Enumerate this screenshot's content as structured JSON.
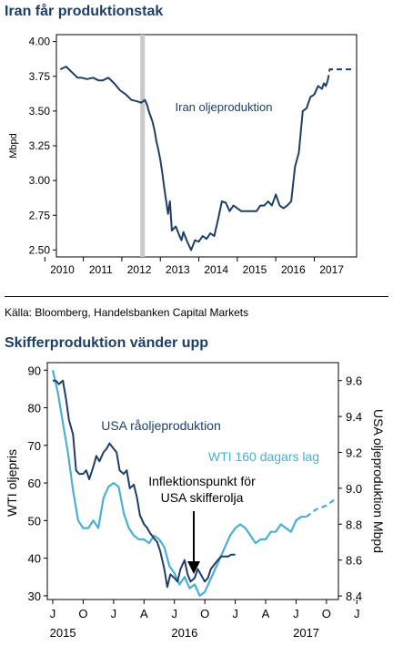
{
  "charts": {
    "chart1": {
      "title": "Iran får produktionstak",
      "ylabel": "Mbpd",
      "series_label": "Iran oljeproduktion",
      "yticks": [
        "4.00",
        "3.75",
        "3.50",
        "3.25",
        "3.00",
        "2.75",
        "2.50"
      ],
      "years": [
        "2010",
        "2011",
        "2012",
        "2013",
        "2014",
        "2015",
        "2016",
        "2017"
      ]
    },
    "source": "Källa: Bloomberg, Handelsbanken Capital Markets",
    "chart2": {
      "title": "Skifferproduktion vänder upp",
      "ylabel_left": "WTI oljepris",
      "ylabel_right": "USA oljeproduktion Mbpd",
      "label_usa": "USA råoljeproduktion",
      "label_wti": "WTI 160 dagars lag",
      "annotation_line1": "Inflektionspunkt för",
      "annotation_line2": "USA skifferolja",
      "yticks_left": [
        "90",
        "80",
        "70",
        "60",
        "50",
        "40",
        "30"
      ],
      "yticks_right": [
        "9.6",
        "9.4",
        "9.2",
        "9.0",
        "8.8",
        "8.6",
        "8.4"
      ],
      "months": [
        "J",
        "O",
        "J",
        "A",
        "J",
        "O",
        "J",
        "A",
        "J",
        "O",
        "J"
      ],
      "years": [
        "2015",
        "2016",
        "2017"
      ]
    }
  },
  "chart_data": [
    {
      "type": "line",
      "title": "Iran får produktionstak",
      "ylabel": "Mbpd",
      "ylim": [
        2.45,
        4.05
      ],
      "xlim": [
        2009.8,
        2017.6
      ],
      "grid": false,
      "series": [
        {
          "name": "Iran oljeproduktion",
          "color": "#1d3f66",
          "x": [
            2009.9,
            2010.05,
            2010.2,
            2010.35,
            2010.45,
            2010.6,
            2010.75,
            2010.9,
            2011.0,
            2011.15,
            2011.3,
            2011.45,
            2011.6,
            2011.75,
            2011.9,
            2012.0,
            2012.1,
            2012.15,
            2012.2,
            2012.25,
            2012.3,
            2012.35,
            2012.4,
            2012.45,
            2012.5,
            2012.55,
            2012.6,
            2012.7,
            2012.75,
            2012.8,
            2012.9,
            2013.0,
            2013.05,
            2013.1,
            2013.2,
            2013.3,
            2013.4,
            2013.5,
            2013.6,
            2013.7,
            2013.8,
            2013.9,
            2014.0,
            2014.1,
            2014.2,
            2014.3,
            2014.4,
            2014.5,
            2014.6,
            2014.7,
            2014.8,
            2014.9,
            2015.0,
            2015.1,
            2015.2,
            2015.3,
            2015.4,
            2015.5,
            2015.6,
            2015.7,
            2015.8,
            2015.9,
            2016.0,
            2016.1,
            2016.2,
            2016.3,
            2016.4,
            2016.5,
            2016.6,
            2016.7,
            2016.75,
            2016.8,
            2016.85
          ],
          "values": [
            3.8,
            3.82,
            3.78,
            3.74,
            3.74,
            3.73,
            3.74,
            3.72,
            3.72,
            3.74,
            3.7,
            3.65,
            3.62,
            3.58,
            3.57,
            3.56,
            3.58,
            3.55,
            3.5,
            3.46,
            3.42,
            3.36,
            3.28,
            3.22,
            3.15,
            3.06,
            2.95,
            2.76,
            2.85,
            2.64,
            2.67,
            2.6,
            2.57,
            2.63,
            2.56,
            2.5,
            2.57,
            2.56,
            2.6,
            2.58,
            2.62,
            2.6,
            2.72,
            2.85,
            2.84,
            2.78,
            2.82,
            2.8,
            2.78,
            2.78,
            2.78,
            2.78,
            2.78,
            2.82,
            2.82,
            2.85,
            2.82,
            2.9,
            2.82,
            2.8,
            2.82,
            2.85,
            3.1,
            3.2,
            3.5,
            3.52,
            3.6,
            3.62,
            3.68,
            3.66,
            3.7,
            3.68,
            3.72
          ]
        },
        {
          "name": "",
          "style": "dashed",
          "color": "#1d3f66",
          "x": [
            2016.85,
            2016.9,
            2017.0,
            2017.2,
            2017.4,
            2017.55
          ],
          "values": [
            3.72,
            3.8,
            3.8,
            3.8,
            3.8,
            3.8
          ]
        }
      ],
      "annotations": [
        "shaded vertical band at 2012.0"
      ]
    },
    {
      "type": "line",
      "title": "Skifferproduktion vänder upp",
      "ylabel_left": "WTI oljepris",
      "ylabel_right": "USA oljeproduktion Mbpd",
      "x_axis": "months Jul 2015 to Oct 2017 (month index 0 = Jul 2015)",
      "xlim": [
        0,
        28
      ],
      "ylim_left": [
        29,
        92
      ],
      "ylim_right": [
        8.38,
        9.7
      ],
      "grid": false,
      "series": [
        {
          "name": "USA råoljeproduktion",
          "axis": "right",
          "color": "#1d3f66",
          "x": [
            0,
            0.3,
            0.6,
            1,
            1.3,
            1.6,
            2,
            2.3,
            2.6,
            3,
            3.3,
            3.6,
            4,
            4.3,
            4.6,
            5,
            5.3,
            5.6,
            6,
            6.3,
            6.6,
            7,
            7.3,
            7.6,
            8,
            8.3,
            8.6,
            9,
            9.3,
            9.6,
            10,
            10.3,
            10.6,
            11,
            11.3,
            11.6,
            12,
            12.3,
            12.6,
            13,
            13.3,
            13.6,
            14,
            14.3,
            14.6,
            15,
            15.3,
            15.6,
            16,
            16.3,
            16.6,
            17,
            17.3,
            17.6,
            18
          ],
          "values": [
            9.6,
            9.6,
            9.58,
            9.6,
            9.5,
            9.38,
            9.3,
            9.1,
            9.08,
            9.08,
            9.1,
            9.05,
            9.12,
            9.18,
            9.15,
            9.2,
            9.22,
            9.25,
            9.22,
            9.2,
            9.1,
            9.08,
            9.1,
            9.0,
            9.02,
            8.95,
            8.85,
            8.8,
            8.78,
            8.75,
            8.72,
            8.7,
            8.65,
            8.55,
            8.45,
            8.52,
            8.5,
            8.48,
            8.55,
            8.6,
            8.52,
            8.48,
            8.5,
            8.55,
            8.52,
            8.48,
            8.5,
            8.55,
            8.58,
            8.6,
            8.62,
            8.62,
            8.62,
            8.63,
            8.63
          ]
        },
        {
          "name": "WTI 160 dagars lag",
          "axis": "left",
          "color": "#4bb0d0",
          "x": [
            0,
            0.5,
            1,
            1.5,
            2,
            2.5,
            3,
            3.5,
            4,
            4.5,
            5,
            5.5,
            6,
            6.5,
            7,
            7.5,
            8,
            8.5,
            9,
            9.5,
            10,
            10.5,
            11,
            11.5,
            12,
            12.5,
            13,
            13.5,
            14,
            14.5,
            15,
            15.5,
            16,
            16.5,
            17,
            17.5,
            18,
            18.5,
            19,
            19.5,
            20,
            20.5,
            21,
            21.5,
            22,
            22.5,
            23,
            23.5,
            24,
            24.5,
            25
          ],
          "values": [
            90,
            84,
            76,
            68,
            58,
            50,
            48,
            48,
            50,
            48,
            56,
            59,
            60,
            59,
            52,
            48,
            46,
            45,
            45,
            44,
            46,
            45,
            43,
            38,
            36,
            33,
            35,
            32,
            33,
            30,
            31,
            34,
            37,
            40,
            43,
            46,
            48,
            49,
            48,
            46,
            44,
            45,
            45,
            47,
            47,
            49,
            48,
            47,
            50,
            51,
            51
          ],
          "dashed_continuation": {
            "x": [
              25,
              26,
              27,
              28
            ],
            "values": [
              51,
              53,
              54,
              56
            ]
          }
        }
      ],
      "annotations": [
        "Inflektionspunkt för USA skifferolja"
      ]
    }
  ]
}
